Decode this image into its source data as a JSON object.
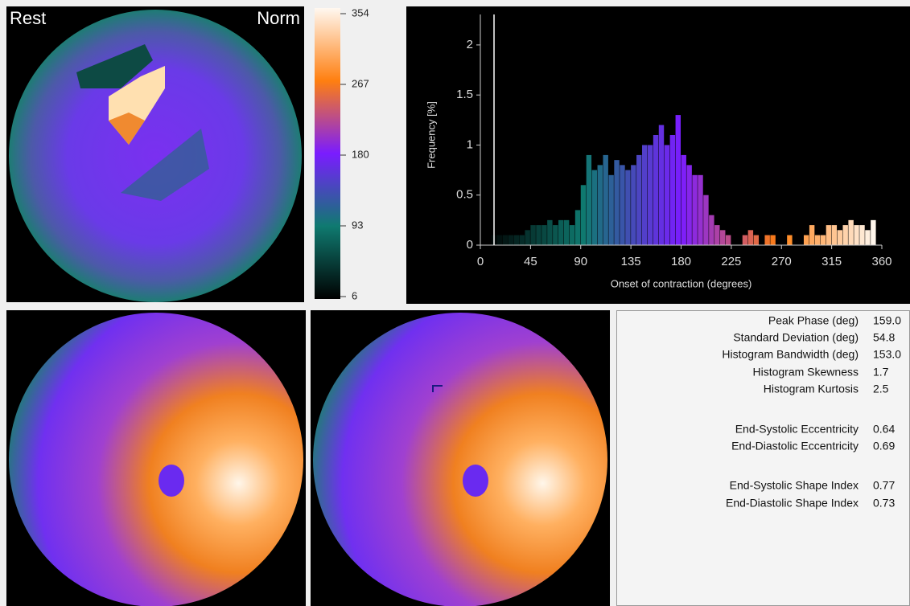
{
  "polar_map": {
    "left_label": "Rest",
    "right_label": "Norm"
  },
  "colorbar": {
    "range": [
      6,
      354
    ],
    "ticks": [
      354,
      267,
      180,
      93,
      6
    ],
    "colors": [
      "#000000",
      "#0f7a70",
      "#7a1cff",
      "#ff7f10",
      "#fff8f0"
    ]
  },
  "chart_data": {
    "type": "histogram",
    "xlabel": "Onset of contraction (degrees)",
    "ylabel": "Frequency [%]",
    "bins": [
      0,
      5,
      10,
      15,
      20,
      25,
      30,
      35,
      40,
      45,
      50,
      55,
      60,
      65,
      70,
      75,
      80,
      85,
      90,
      95,
      100,
      105,
      110,
      115,
      120,
      125,
      130,
      135,
      140,
      145,
      150,
      155,
      160,
      165,
      170,
      175,
      180,
      185,
      190,
      195,
      200,
      205,
      210,
      215,
      220,
      225,
      230,
      235,
      240,
      245,
      250,
      255,
      260,
      265,
      270,
      275,
      280,
      285,
      290,
      295,
      300,
      305,
      310,
      315,
      320,
      325,
      330,
      335,
      340,
      345,
      350,
      355,
      360
    ],
    "values": [
      0,
      0,
      0.1,
      0.1,
      0.1,
      0.1,
      0.1,
      0.1,
      0.15,
      0.2,
      0.2,
      0.2,
      0.25,
      0.2,
      0.25,
      0.25,
      0.2,
      0.35,
      0.6,
      0.9,
      0.75,
      0.8,
      0.9,
      0.7,
      0.85,
      0.8,
      0.75,
      0.8,
      0.9,
      1.0,
      1.0,
      1.1,
      1.2,
      1.0,
      1.1,
      1.3,
      0.9,
      0.8,
      0.7,
      0.7,
      0.5,
      0.3,
      0.2,
      0.15,
      0.1,
      0,
      0,
      0.1,
      0.15,
      0.1,
      0,
      0.1,
      0.1,
      0,
      0,
      0.1,
      0,
      0,
      0.1,
      0.2,
      0.1,
      0.1,
      0.2,
      0.2,
      0.15,
      0.2,
      0.25,
      0.2,
      0.2,
      0.15,
      0.25,
      0
    ],
    "xlim": [
      0,
      360
    ],
    "xticks": [
      0,
      45,
      90,
      135,
      180,
      225,
      270,
      315,
      360
    ],
    "ylim": [
      0,
      2.2
    ],
    "yticks": [
      0,
      0.5,
      1,
      1.5,
      2
    ]
  },
  "stats": {
    "rows": [
      [
        "Peak Phase (deg)",
        "159.0"
      ],
      [
        "Standard Deviation (deg)",
        "54.8"
      ],
      [
        "Histogram Bandwidth (deg)",
        "153.0"
      ],
      [
        "Histogram Skewness",
        "1.7"
      ],
      [
        "Histogram Kurtosis",
        "2.5"
      ],
      [
        "End-Systolic Eccentricity",
        "0.64"
      ],
      [
        "End-Diastolic Eccentricity",
        "0.69"
      ],
      [
        "End-Systolic Shape Index",
        "0.77"
      ],
      [
        "End-Diastolic Shape Index",
        "0.73"
      ]
    ]
  }
}
